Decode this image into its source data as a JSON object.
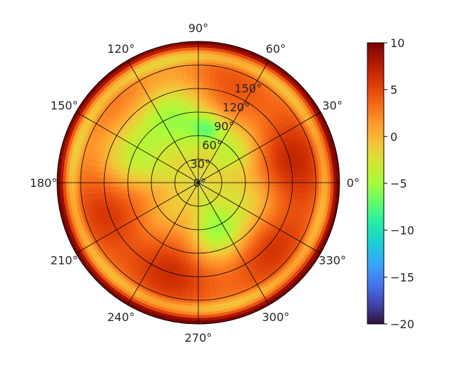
{
  "chart_data": {
    "type": "heatmap",
    "projection": "polar",
    "angle_ticks": [
      "0°",
      "30°",
      "60°",
      "90°",
      "120°",
      "150°",
      "180°",
      "210°",
      "240°",
      "270°",
      "300°",
      "330°"
    ],
    "radial_ticks": [
      "0°",
      "30°",
      "60°",
      "90°",
      "120°",
      "150°"
    ],
    "radial_range": [
      0,
      180
    ],
    "grid": true,
    "colormap": "turbo",
    "colorbar": {
      "range": [
        -20,
        10
      ],
      "ticks": [
        "10",
        "5",
        "0",
        "−5",
        "−10",
        "−15",
        "−20"
      ],
      "placement": "right"
    },
    "field_summary": [
      {
        "region": "outer rim (radius ~170-180)",
        "value": 6
      },
      {
        "region": "ring radius ~140-160",
        "value": 1
      },
      {
        "region": "upper-left band angle 100-170, radius 60-130",
        "value": -6
      },
      {
        "region": "spot angle ~80, radius ~70",
        "value": -11
      },
      {
        "region": "lower-right band angle 280-320, radius 40-100",
        "value": -6
      },
      {
        "region": "left / lower-left sector angle 180-260, radius 60-150",
        "value": 3
      },
      {
        "region": "right sector angle 330-30, radius 100-160",
        "value": 4
      },
      {
        "region": "center radius 0-30",
        "value": -2
      }
    ]
  }
}
